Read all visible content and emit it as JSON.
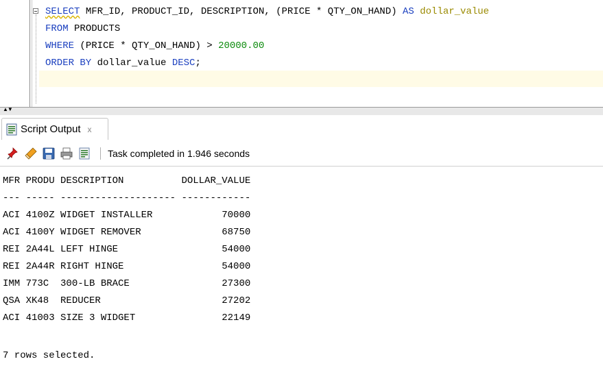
{
  "editor": {
    "lines": [
      {
        "k1": "SELECT",
        "t1": " MFR_ID, PRODUCT_ID, DESCRIPTION, (PRICE * QTY_ON_HAND) ",
        "k2": "AS",
        "t2": " ",
        "s1": "dollar_value"
      },
      {
        "k1": "FROM",
        "t1": " PRODUCTS"
      },
      {
        "k1": "WHERE",
        "t1": " (PRICE * QTY_ON_HAND) > ",
        "n1": "20000.00"
      },
      {
        "k1": "ORDER BY",
        "t1": " dollar_value ",
        "k2": "DESC",
        "t2": ";"
      }
    ]
  },
  "output_tab": {
    "label": "Script Output",
    "close": "x"
  },
  "toolbar": {
    "icons": [
      "pin-icon",
      "eraser-icon",
      "save-icon",
      "print-icon",
      "script-icon"
    ],
    "status": "Task completed in 1.946 seconds"
  },
  "results": {
    "header": "MFR PRODU DESCRIPTION          DOLLAR_VALUE",
    "separator": "--- ----- -------------------- ------------",
    "rows": [
      "ACI 4100Z WIDGET INSTALLER            70000",
      "ACI 4100Y WIDGET REMOVER              68750",
      "REI 2A44L LEFT HINGE                  54000",
      "REI 2A44R RIGHT HINGE                 54000",
      "IMM 773C  300-LB BRACE                27300",
      "QSA XK48  REDUCER                     27202",
      "ACI 41003 SIZE 3 WIDGET               22149"
    ],
    "footer": "7 rows selected."
  }
}
